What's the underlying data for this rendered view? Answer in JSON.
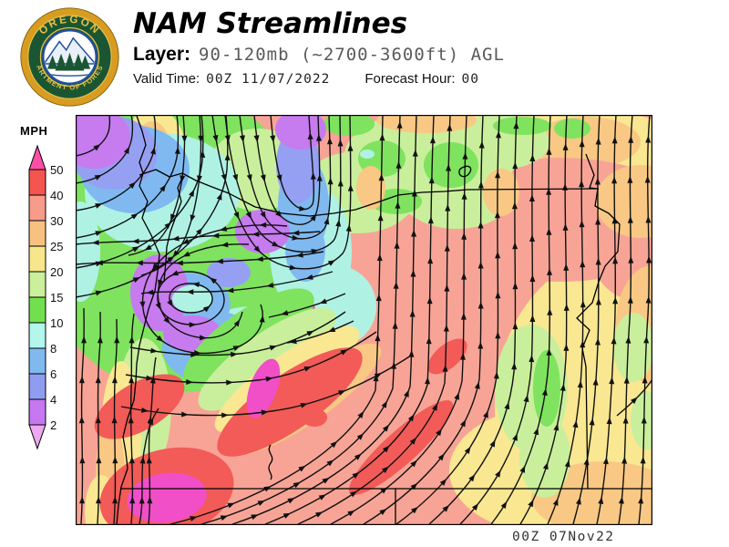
{
  "header": {
    "title": "NAM Streamlines",
    "layer_label": "Layer:",
    "layer_value": "90-120mb (~2700-3600ft) AGL",
    "valid_time_label": "Valid Time:",
    "valid_time_value": "00Z 11/07/2022",
    "forecast_hour_label": "Forecast Hour:",
    "forecast_hour_value": "00"
  },
  "logo": {
    "top_text": "OREGON",
    "bottom_text": "DEPARTMENT OF FORESTRY",
    "ring_color": "#D79C20",
    "band_color": "#1A5632",
    "text_color": "#E9BE4A",
    "emblem_border_color": "#234FA0"
  },
  "legend": {
    "title": "MPH",
    "thresholds": [
      "50",
      "40",
      "30",
      "25",
      "20",
      "15",
      "10",
      "8",
      "6",
      "4",
      "2"
    ],
    "segment_colors": [
      "#F4554E",
      "#F79B8B",
      "#F9C180",
      "#F9E68C",
      "#CBEF9B",
      "#72DF4F",
      "#B2F6EC",
      "#7FB9F0",
      "#8F9DF0",
      "#C678F0"
    ],
    "above_max_color": "#FB4FA5",
    "below_min_color": "#EDA8EF"
  },
  "map": {
    "timestamp": "00Z 07Nov22",
    "base_color": "#F7A496",
    "palette": {
      "salmon": "#F7A496",
      "yellow": "#F9E792",
      "orange": "#F9C884",
      "ygreen": "#C9EF9C",
      "green": "#7FE35F",
      "cyan": "#AFF2E4",
      "skyblue": "#7FB9F0",
      "violet": "#96A0F2",
      "purple": "#C67BEE",
      "red": "#F25B57",
      "magenta": "#F04FC8"
    },
    "regions": [
      [
        520,
        65,
        190,
        75,
        0,
        "yellow"
      ],
      [
        600,
        320,
        140,
        170,
        0,
        "yellow"
      ],
      [
        520,
        390,
        110,
        70,
        0,
        "yellow"
      ],
      [
        560,
        30,
        60,
        28,
        0,
        "orange"
      ],
      [
        530,
        115,
        150,
        68,
        0,
        "salmon"
      ],
      [
        622,
        155,
        55,
        50,
        0,
        "salmon"
      ],
      [
        620,
        95,
        50,
        40,
        0,
        "orange"
      ],
      [
        633,
        230,
        40,
        65,
        0,
        "orange"
      ],
      [
        580,
        420,
        80,
        40,
        0,
        "orange"
      ],
      [
        500,
        300,
        40,
        70,
        0,
        "ygreen"
      ],
      [
        515,
        375,
        28,
        45,
        0,
        "ygreen"
      ],
      [
        612,
        255,
        22,
        38,
        0,
        "ygreen"
      ],
      [
        627,
        335,
        18,
        32,
        0,
        "ygreen"
      ],
      [
        517,
        300,
        15,
        42,
        0,
        "green"
      ],
      [
        390,
        45,
        95,
        50,
        0,
        "ygreen"
      ],
      [
        310,
        85,
        65,
        45,
        0,
        "ygreen"
      ],
      [
        465,
        30,
        55,
        30,
        0,
        "ygreen"
      ],
      [
        418,
        90,
        60,
        35,
        0,
        "ygreen"
      ],
      [
        336,
        48,
        26,
        20,
        0,
        "green"
      ],
      [
        412,
        55,
        30,
        25,
        0,
        "green"
      ],
      [
        352,
        95,
        28,
        14,
        0,
        "green"
      ],
      [
        300,
        10,
        28,
        13,
        0,
        "green"
      ],
      [
        490,
        12,
        32,
        10,
        0,
        "green"
      ],
      [
        545,
        15,
        20,
        11,
        0,
        "green"
      ],
      [
        385,
        6,
        55,
        14,
        0,
        "orange"
      ],
      [
        324,
        80,
        16,
        24,
        0,
        "orange"
      ],
      [
        467,
        85,
        20,
        26,
        0,
        "orange"
      ],
      [
        320,
        43,
        8,
        5,
        0,
        "cyan"
      ],
      [
        110,
        140,
        150,
        165,
        0,
        "green"
      ],
      [
        200,
        60,
        55,
        45,
        0,
        "ygreen"
      ],
      [
        75,
        320,
        30,
        75,
        0,
        "ygreen"
      ],
      [
        86,
        62,
        40,
        70,
        0,
        "yellow"
      ],
      [
        84,
        55,
        24,
        48,
        0,
        "orange"
      ],
      [
        95,
        85,
        85,
        65,
        0,
        "cyan"
      ],
      [
        65,
        60,
        60,
        48,
        0,
        "skyblue"
      ],
      [
        42,
        42,
        48,
        40,
        0,
        "violet"
      ],
      [
        20,
        25,
        40,
        34,
        0,
        "purple"
      ],
      [
        5,
        150,
        22,
        55,
        0,
        "cyan"
      ],
      [
        195,
        265,
        75,
        55,
        0,
        "cyan"
      ],
      [
        285,
        210,
        45,
        45,
        0,
        "cyan"
      ],
      [
        150,
        255,
        55,
        40,
        0,
        "skyblue"
      ],
      [
        258,
        150,
        45,
        75,
        0,
        "cyan"
      ],
      [
        250,
        100,
        28,
        55,
        0,
        "skyblue"
      ],
      [
        244,
        55,
        24,
        42,
        0,
        "violet"
      ],
      [
        247,
        16,
        28,
        22,
        0,
        "purple"
      ],
      [
        252,
        148,
        22,
        35,
        0,
        "skyblue"
      ],
      [
        205,
        128,
        30,
        24,
        0,
        "purple"
      ],
      [
        120,
        208,
        50,
        35,
        0,
        "skyblue"
      ],
      [
        92,
        195,
        32,
        42,
        0,
        "purple"
      ],
      [
        128,
        240,
        32,
        20,
        0,
        "purple"
      ],
      [
        128,
        202,
        22,
        15,
        0,
        "cyan"
      ],
      [
        168,
        173,
        24,
        16,
        0,
        "violet"
      ],
      [
        252,
        213,
        11,
        9,
        0,
        "magenta"
      ],
      [
        190,
        245,
        85,
        30,
        -35,
        "green"
      ],
      [
        210,
        268,
        90,
        28,
        -35,
        "ygreen"
      ],
      [
        232,
        290,
        95,
        26,
        -35,
        "yellow"
      ],
      [
        252,
        312,
        100,
        26,
        -35,
        "orange"
      ],
      [
        50,
        350,
        22,
        80,
        0,
        "yellow"
      ],
      [
        38,
        395,
        16,
        60,
        0,
        "orange"
      ],
      [
        28,
        435,
        18,
        40,
        0,
        "yellow"
      ],
      [
        235,
        315,
        95,
        30,
        -35,
        "red"
      ],
      [
        70,
        320,
        55,
        26,
        -30,
        "red"
      ],
      [
        100,
        415,
        75,
        48,
        -15,
        "red"
      ],
      [
        357,
        365,
        75,
        18,
        -42,
        "red"
      ],
      [
        408,
        265,
        26,
        13,
        -40,
        "red"
      ],
      [
        262,
        332,
        14,
        10,
        0,
        "red"
      ],
      [
        206,
        300,
        15,
        34,
        20,
        "magenta"
      ],
      [
        100,
        420,
        44,
        27,
        -8,
        "magenta"
      ]
    ],
    "streamlines": [
      "M618,449 C626,380 622,300 628,220 C632,150 624,70 630,0",
      "M596,449 C606,385 602,305 608,225 C612,155 605,72 611,0",
      "M572,449 C584,392 587,320 591,242 C595,172 588,82 593,0",
      "M546,449 C561,397 570,332 573,252 C576,177 570,82 575,0",
      "M518,449 C539,402 553,342 556,262 C559,187 552,87 557,0",
      "M488,449 C514,406 533,347 538,267 C541,192 534,92 539,0",
      "M456,449 C487,409 513,352 519,272 C523,197 516,97 521,0",
      "M422,449 C459,411 493,357 500,277 C504,202 498,102 503,0",
      "M388,449 C429,413 473,360 481,282 C485,207 479,107 484,0",
      "M352,449 C397,416 451,362 462,287 C466,212 460,112 465,0",
      "M316,449 C365,419 429,364 443,290 C447,217 442,117 447,0",
      "M280,449 C333,421 407,367 424,292 C428,220 424,120 429,0",
      "M244,449 C301,423 385,370 405,294 C409,222 406,124 411,0",
      "M208,449 C269,425 363,372 386,296 C390,226 388,127 393,0",
      "M172,449 C239,427 341,374 367,298 C371,230 370,130 374,0",
      "M138,449 C209,429 319,376 348,300 C352,232 352,132 356,0",
      "M104,449 C179,431 297,378 329,302 C333,236 334,135 337,0",
      "M6,449 C10,380 4,330 8,270 C10,240 9,225 9,212",
      "M24,449 C28,382 22,322 26,262 C28,241 27,228 27,216",
      "M42,449 C46,392 40,332 44,272 C46,248 45,236 45,224",
      "M61,449 C65,402 59,352 61,302 C62,272 60,245 64,218",
      "M80,449 C84,410 78,372 82,334 C85,308 84,288 88,266",
      "M70,449 C76,420 70,392 76,364 C79,346 83,334 91,322",
      "M0,45 C22,41 36,27 37,13 C38,7 37,2 37,0",
      "M0,75 C38,69 60,45 62,22 C63,11 62,4 61,0",
      "M0,105 C53,97 84,63 87,32 C88,16 87,5 86,0",
      "M0,135 C68,124 108,81 112,40 C113,20 112,7 111,0",
      "M0,168 C84,155 134,101 139,50 C141,25 139,8 138,0",
      "M0,200 C100,184 160,120 166,60 C168,30 166,10 165,0",
      "M214,0 C217,35 222,70 231,88 C241,104 254,108 260,98 C264,88 258,40 256,0",
      "M196,0 C200,40 206,80 218,102 C230,122 252,126 262,112 C270,100 268,60 266,0",
      "M180,0 C186,50 194,95 212,118 C228,138 258,142 272,126 C282,114 280,66 278,0",
      "M164,0 C170,55 182,105 205,132 C224,152 265,158 283,138 C293,124 291,70 290,0",
      "M150,0 C158,60 174,118 200,148 C224,174 272,176 293,152 C304,138 302,75 301,0",
      "M136,0 C140,45 136,90 124,125 C114,155 96,170 72,176",
      "M118,0 C122,40 118,82 106,112 C97,138 80,150 58,154",
      "M268,128 C220,132 160,130 110,136 C75,140 38,138 0,142",
      "M272,150 C230,158 180,160 130,162 C90,164 40,160 0,164",
      "M282,172 C244,183 204,190 166,193 C130,196 100,192 72,196",
      "M296,196 C268,208 240,216 212,222",
      "M305,226 C280,238 255,247 232,250",
      "M150,202 C150,192 139,185 125,185 C111,185 103,192 103,201 C103,210 113,217 126,217 C139,217 150,211 150,202 Z",
      "M163,203 C163,188 146,172 124,172 C102,172 89,186 90,202 C91,220 110,231 130,230 C148,229 163,217 163,203 Z",
      "M190,142 C150,140 112,152 98,172 C82,196 92,228 120,240 C150,252 178,240 183,216",
      "M232,122 C162,115 92,140 77,185 C62,230 97,266 150,261 C194,257 212,232 203,208",
      "M60,255 C100,262 140,266 180,262 C220,258 262,240 296,216",
      "M55,285 C100,293 150,297 200,291 C246,286 292,264 330,238",
      "M50,320 C100,330 160,333 215,325 C268,318 322,294 368,264",
      "M594,330 C612,315 626,301 633,290"
    ],
    "geography": [
      "M67,1 L73,18 L77,33 L70,52 L74,64 L70,78 L79,95 L73,113 L83,132 L92,153 L90,172 L87,193 L80,213 L75,233 L70,253 L67,273 L66,293 L64,313 L57,333 L52,353 L55,370 L57,388 L50,408 L47,428 L45,449",
      "M70,66 L88,60 L103,68 L117,64 L132,72 L147,78 L168,86 L197,101 L227,108 L257,111 L283,108 L307,104 L331,96 L354,88 L380,85 L405,84 L430,82 L574,81",
      "M117,69 L112,80 L116,95 L104,128 L100,145 L99,161 L97,183",
      "M560,43 L569,66 L564,80 L573,81 L570,100 L585,108 L597,120 L595,150 L581,166 L574,183 L567,206 L550,223 L564,236 L556,256 L560,276 L562,410",
      "M50,410 L633,410",
      "M351,410 L351,449",
      "M424,58 C432,54 436,58 432,64 C428,70 420,68 421,62 C421,60 422,59 424,58 Z",
      "M214,362 C208,370 220,374 214,382 C208,390 218,394 214,400"
    ]
  }
}
